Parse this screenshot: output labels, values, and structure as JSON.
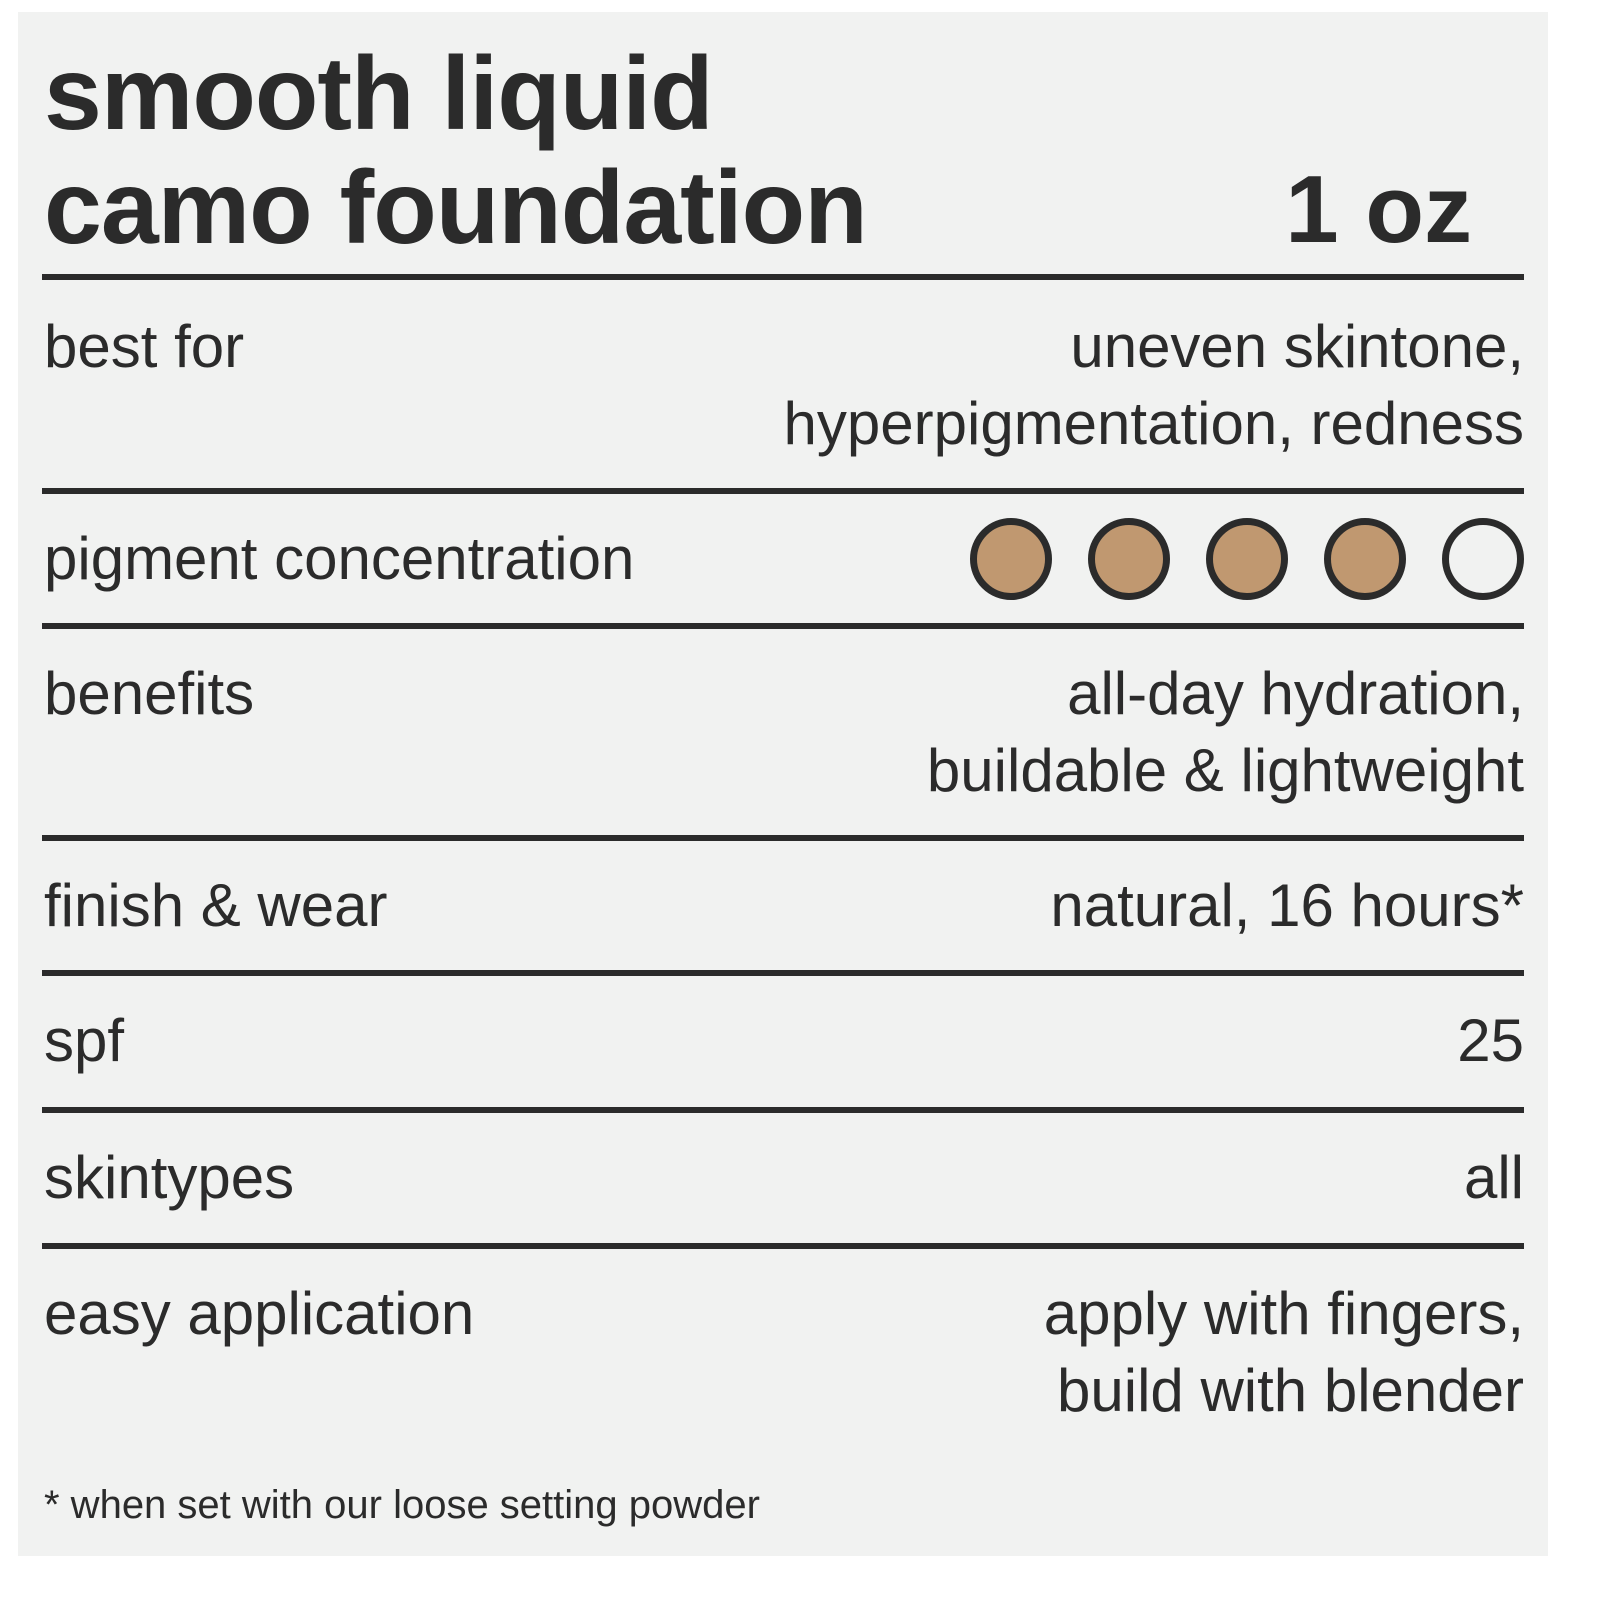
{
  "header": {
    "title_line1": "smooth liquid",
    "title_line2": "camo foundation",
    "size": "1 oz"
  },
  "rows": [
    {
      "label": "best for",
      "value_lines": [
        "uneven skintone,",
        "hyperpigmentation, redness"
      ]
    },
    {
      "label": "pigment concentration",
      "rating": 4,
      "rating_max": 5
    },
    {
      "label": "benefits",
      "value_lines": [
        "all-day hydration,",
        "buildable & lightweight"
      ]
    },
    {
      "label": "finish & wear",
      "value_lines": [
        "natural, 16 hours*"
      ]
    },
    {
      "label": "spf",
      "value_lines": [
        "25"
      ]
    },
    {
      "label": "skintypes",
      "value_lines": [
        "all"
      ]
    },
    {
      "label": "easy application",
      "value_lines": [
        "apply with fingers,",
        "build with blender"
      ]
    }
  ],
  "footnote": "* when set with our loose setting powder",
  "colors": {
    "background": "#f1f2f1",
    "text": "#2b2b2b",
    "pigment_fill": "#c09870"
  }
}
